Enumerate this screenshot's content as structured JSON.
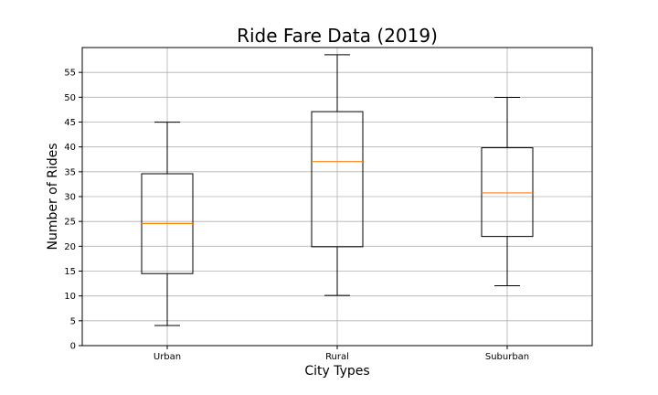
{
  "chart_data": {
    "type": "box",
    "title": "Ride Fare Data (2019)",
    "xlabel": "City Types",
    "ylabel": "Number of Rides",
    "ylim": [
      0,
      60
    ],
    "yticks": [
      0,
      5,
      10,
      15,
      20,
      25,
      30,
      35,
      40,
      45,
      50,
      55
    ],
    "grid": true,
    "categories": [
      "Urban",
      "Rural",
      "Suburban"
    ],
    "boxes": [
      {
        "category": "Urban",
        "whisker_low": 4.05,
        "q1": 14.5,
        "median": 24.6,
        "q3": 34.6,
        "whisker_high": 44.97
      },
      {
        "category": "Rural",
        "whisker_low": 10.11,
        "q1": 19.9,
        "median": 37.05,
        "q3": 47.1,
        "whisker_high": 58.55
      },
      {
        "category": "Suburban",
        "whisker_low": 12.05,
        "q1": 21.97,
        "median": 30.75,
        "q3": 39.83,
        "whisker_high": 49.96
      }
    ],
    "colors": {
      "box": "#000000",
      "median": "#ff7f0e",
      "grid": "#b0b0b0"
    }
  }
}
